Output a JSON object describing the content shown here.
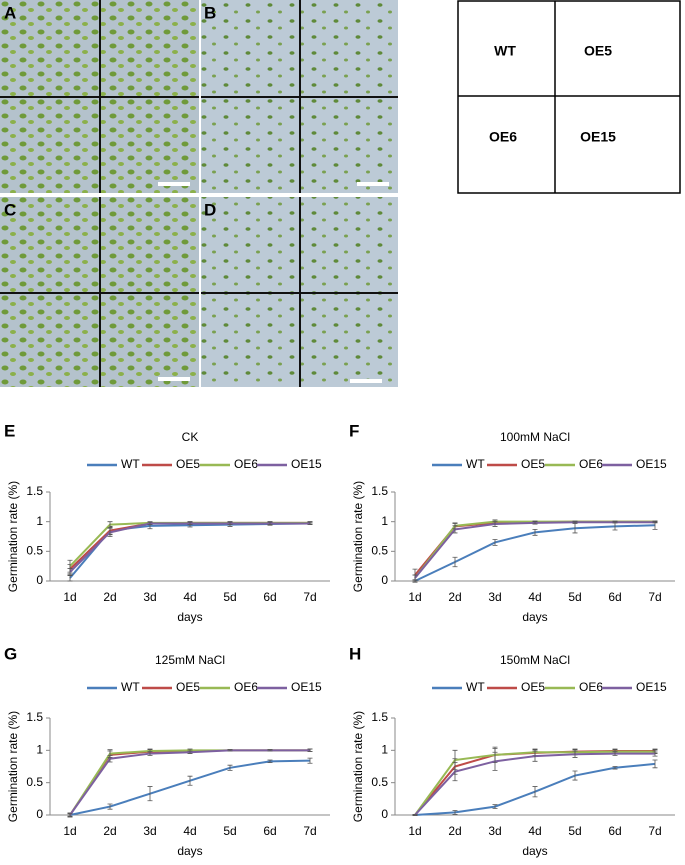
{
  "photo_panels": {
    "labels": [
      "A",
      "B",
      "C",
      "D"
    ]
  },
  "layout_key": {
    "cells": [
      "WT",
      "OE5",
      "OE6",
      "OE15"
    ]
  },
  "chart_data": [
    {
      "type": "line",
      "panel_label": "E",
      "title": "CK",
      "x_label": "days",
      "y_label": "Germination rate (%)",
      "categories": [
        "1d",
        "2d",
        "3d",
        "4d",
        "5d",
        "6d",
        "7d"
      ],
      "ylim": [
        0,
        1.5
      ],
      "yticks": [
        0,
        0.5,
        1,
        1.5
      ],
      "series": [
        {
          "name": "WT",
          "color": "#4a7ebb",
          "values": [
            0.05,
            0.85,
            0.93,
            0.94,
            0.95,
            0.96,
            0.97
          ],
          "error": [
            0.05,
            0.06,
            0.05,
            0.03,
            0.03,
            0.02,
            0.02
          ]
        },
        {
          "name": "OE5",
          "color": "#be4b48",
          "values": [
            0.2,
            0.85,
            0.97,
            0.98,
            0.98,
            0.98,
            0.98
          ],
          "error": [
            0.08,
            0.07,
            0.02,
            0.02,
            0.02,
            0.02,
            0.02
          ]
        },
        {
          "name": "OE6",
          "color": "#98b954",
          "values": [
            0.25,
            0.95,
            0.98,
            0.98,
            0.98,
            0.98,
            0.98
          ],
          "error": [
            0.1,
            0.05,
            0.02,
            0.02,
            0.02,
            0.02,
            0.02
          ]
        },
        {
          "name": "OE15",
          "color": "#7d60a0",
          "values": [
            0.15,
            0.82,
            0.97,
            0.97,
            0.97,
            0.97,
            0.97
          ],
          "error": [
            0.06,
            0.07,
            0.02,
            0.02,
            0.02,
            0.02,
            0.02
          ]
        }
      ]
    },
    {
      "type": "line",
      "panel_label": "F",
      "title": "100mM NaCl",
      "x_label": "days",
      "y_label": "Germination rate (%)",
      "categories": [
        "1d",
        "2d",
        "3d",
        "4d",
        "5d",
        "6d",
        "7d"
      ],
      "ylim": [
        0,
        1.5
      ],
      "yticks": [
        0,
        0.5,
        1,
        1.5
      ],
      "series": [
        {
          "name": "WT",
          "color": "#4a7ebb",
          "values": [
            0,
            0.32,
            0.65,
            0.82,
            0.89,
            0.92,
            0.94
          ],
          "error": [
            0.02,
            0.08,
            0.05,
            0.05,
            0.08,
            0.06,
            0.07
          ]
        },
        {
          "name": "OE5",
          "color": "#be4b48",
          "values": [
            0.1,
            0.92,
            0.98,
            0.99,
            1,
            1,
            1
          ],
          "error": [
            0.1,
            0.05,
            0.03,
            0.02,
            0.01,
            0.01,
            0.01
          ]
        },
        {
          "name": "OE6",
          "color": "#98b954",
          "values": [
            0.05,
            0.93,
            1,
            1,
            1,
            1,
            1
          ],
          "error": [
            0.05,
            0.05,
            0.03,
            0.01,
            0.01,
            0.01,
            0.01
          ]
        },
        {
          "name": "OE15",
          "color": "#7d60a0",
          "values": [
            0.05,
            0.87,
            0.96,
            0.98,
            0.99,
            0.99,
            0.99
          ],
          "error": [
            0.05,
            0.06,
            0.04,
            0.02,
            0.01,
            0.01,
            0.01
          ]
        }
      ]
    },
    {
      "type": "line",
      "panel_label": "G",
      "title": "125mM NaCl",
      "x_label": "days",
      "y_label": "Germination rate (%)",
      "categories": [
        "1d",
        "2d",
        "3d",
        "4d",
        "5d",
        "6d",
        "7d"
      ],
      "ylim": [
        0,
        1.5
      ],
      "yticks": [
        0,
        0.5,
        1,
        1.5
      ],
      "series": [
        {
          "name": "WT",
          "color": "#4a7ebb",
          "values": [
            0,
            0.13,
            0.33,
            0.53,
            0.73,
            0.83,
            0.84
          ],
          "error": [
            0.02,
            0.04,
            0.11,
            0.07,
            0.04,
            0.02,
            0.04
          ]
        },
        {
          "name": "OE5",
          "color": "#be4b48",
          "values": [
            0,
            0.93,
            0.98,
            0.99,
            1,
            1,
            1
          ],
          "error": [
            0.03,
            0.06,
            0.03,
            0.02,
            0.01,
            0.01,
            0.02
          ]
        },
        {
          "name": "OE6",
          "color": "#98b954",
          "values": [
            0,
            0.95,
            0.99,
            1,
            1,
            1,
            1
          ],
          "error": [
            0.03,
            0.06,
            0.03,
            0.02,
            0.01,
            0.01,
            0.02
          ]
        },
        {
          "name": "OE15",
          "color": "#7d60a0",
          "values": [
            0,
            0.87,
            0.95,
            0.97,
            1,
            1,
            1
          ],
          "error": [
            0.02,
            0.05,
            0.03,
            0.02,
            0.01,
            0.01,
            0.02
          ]
        }
      ]
    },
    {
      "type": "line",
      "panel_label": "H",
      "title": "150mM NaCl",
      "x_label": "days",
      "y_label": "Germination rate (%)",
      "categories": [
        "1d",
        "2d",
        "3d",
        "4d",
        "5d",
        "6d",
        "7d"
      ],
      "ylim": [
        0,
        1.5
      ],
      "yticks": [
        0,
        0.5,
        1,
        1.5
      ],
      "series": [
        {
          "name": "WT",
          "color": "#4a7ebb",
          "values": [
            0,
            0.04,
            0.13,
            0.36,
            0.61,
            0.73,
            0.79
          ],
          "error": [
            0.01,
            0.03,
            0.03,
            0.08,
            0.07,
            0.02,
            0.06
          ]
        },
        {
          "name": "OE5",
          "color": "#be4b48",
          "values": [
            0,
            0.75,
            0.93,
            0.96,
            0.98,
            0.99,
            0.99
          ],
          "error": [
            0.01,
            0.12,
            0.1,
            0.05,
            0.04,
            0.03,
            0.03
          ]
        },
        {
          "name": "OE6",
          "color": "#98b954",
          "values": [
            0,
            0.85,
            0.93,
            0.97,
            0.97,
            0.98,
            0.98
          ],
          "error": [
            0.01,
            0.15,
            0.12,
            0.05,
            0.04,
            0.03,
            0.03
          ]
        },
        {
          "name": "OE15",
          "color": "#7d60a0",
          "values": [
            0,
            0.67,
            0.83,
            0.91,
            0.94,
            0.95,
            0.95
          ],
          "error": [
            0.01,
            0.14,
            0.14,
            0.08,
            0.05,
            0.03,
            0.04
          ]
        }
      ]
    }
  ]
}
